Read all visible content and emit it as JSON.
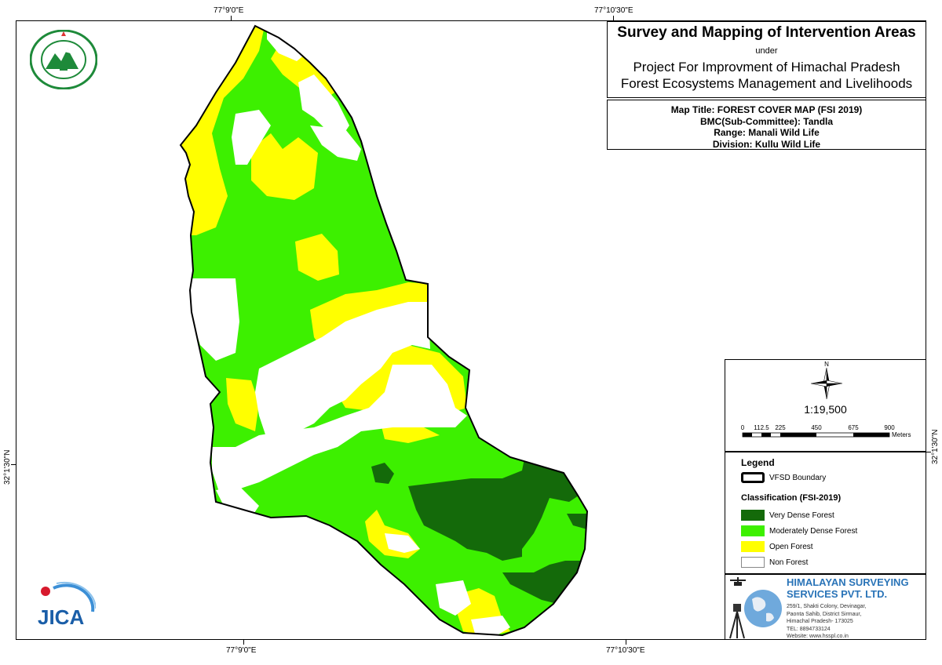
{
  "map": {
    "title": "Survey and Mapping of Intervention Areas",
    "under": "under",
    "project_line1": "Project For Improvment of Himachal Pradesh",
    "project_line2": "Forest Ecosystems Management and Livelihoods",
    "map_title": "Map Title: FOREST COVER MAP (FSI 2019)",
    "bmc": "BMC(Sub-Committee): Tandla",
    "range": "Range: Manali Wild Life",
    "division": "Division: Kullu Wild Life"
  },
  "grid": {
    "top_left": "77°9'0\"E",
    "top_right": "77°10'30\"E",
    "bottom_left": "77°9'0\"E",
    "bottom_right": "77°10'30\"E",
    "left": "32°1'30\"N",
    "right": "32°1'30\"N"
  },
  "north_arrow": {
    "label": "N"
  },
  "scale": {
    "ratio": "1:19,500",
    "ticks": [
      "0",
      "112.5",
      "225",
      "450",
      "675",
      "900"
    ],
    "unit": "Meters"
  },
  "legend": {
    "title": "Legend",
    "boundary_label": "VFSD Boundary",
    "classification_title": "Classification (FSI-2019)",
    "classes": [
      {
        "label": "Very Dense Forest",
        "color": "#146a0a"
      },
      {
        "label": "Moderately Dense Forest",
        "color": "#3df000"
      },
      {
        "label": "Open Forest",
        "color": "#ffff00"
      },
      {
        "label": "Non Forest",
        "color": "#ffffff"
      }
    ]
  },
  "company": {
    "name1": "HIMALAYAN SURVEYING",
    "name2": "SERVICES PVT. LTD.",
    "address": [
      "259/1, Shakti Colony, Devinagar,",
      "Paonta Sahib, District Sirmaur,",
      "Himachal Pradesh- 173025",
      "TEL: 8894733124",
      "Website: www.hsspl.co.in"
    ]
  },
  "logos": {
    "left_seal": "forest-department-seal",
    "jica": "JICA"
  }
}
